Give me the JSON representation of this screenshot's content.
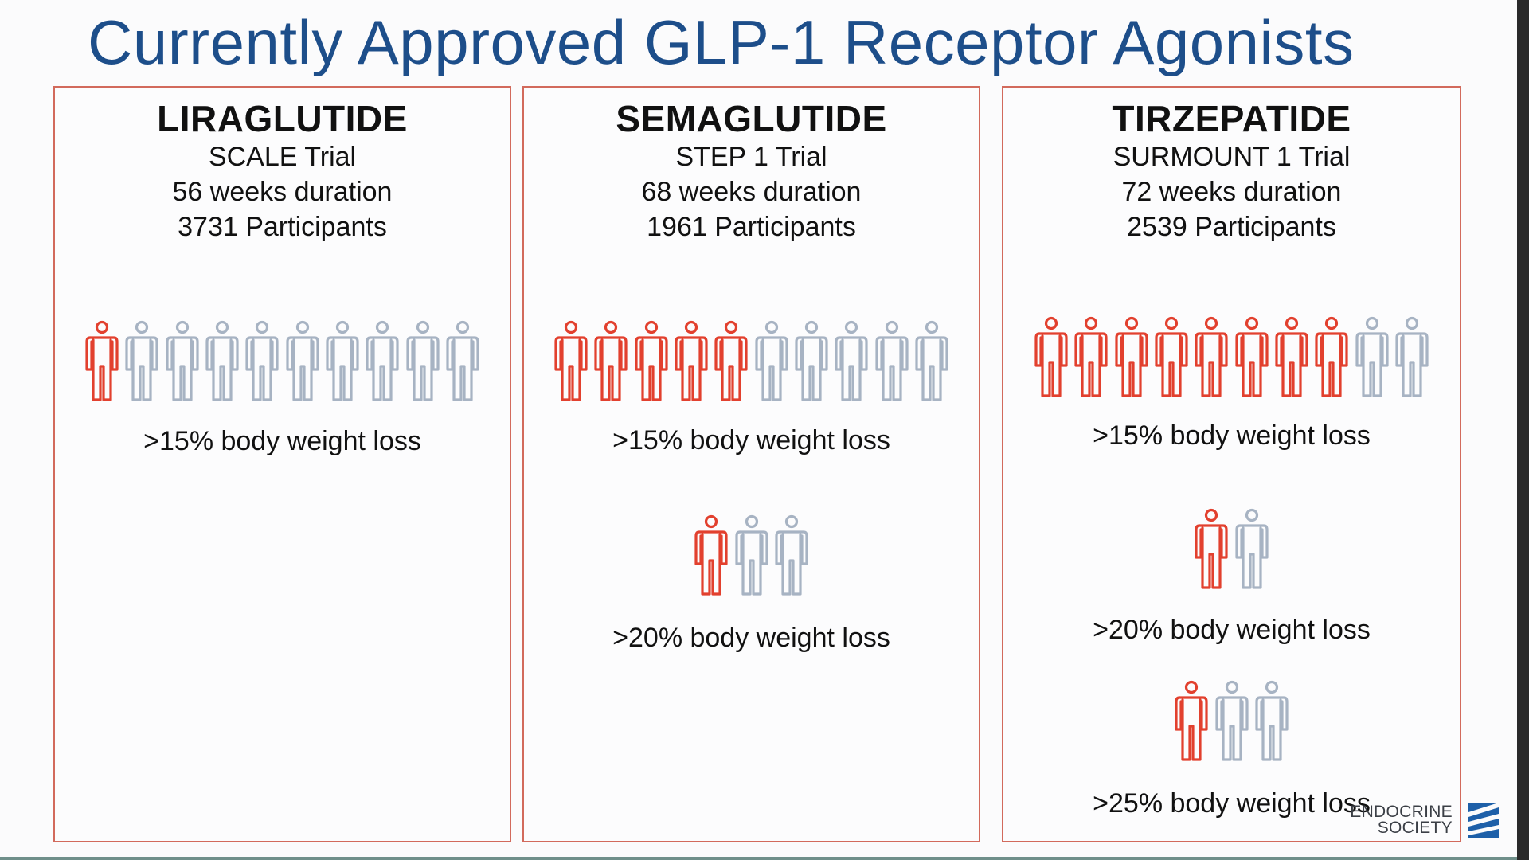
{
  "slide": {
    "title": "Currently Approved GLP-1 Receptor Agonists"
  },
  "colors": {
    "title": "#1d4e8a",
    "highlight": "#e2402e",
    "base": "#a7b3c3",
    "border": "#d26a5c"
  },
  "icons": {
    "person": "person-icon",
    "logo": "endocrine-society-logo-icon"
  },
  "panels": [
    {
      "drug": "LIRAGLUTIDE",
      "trial": "SCALE Trial",
      "duration": "56 weeks duration",
      "participants": "3731 Participants",
      "metrics": [
        {
          "label": ">15% body weight loss",
          "highlighted": 1,
          "total": 10
        }
      ]
    },
    {
      "drug": "SEMAGLUTIDE",
      "trial": "STEP 1 Trial",
      "duration": "68 weeks duration",
      "participants": "1961 Participants",
      "metrics": [
        {
          "label": ">15% body weight loss",
          "highlighted": 5,
          "total": 10
        },
        {
          "label": ">20% body weight loss",
          "highlighted": 1,
          "total": 3
        }
      ]
    },
    {
      "drug": "TIRZEPATIDE",
      "trial": "SURMOUNT 1 Trial",
      "duration": "72 weeks duration",
      "participants": "2539 Participants",
      "metrics": [
        {
          "label": ">15% body weight loss",
          "highlighted": 8,
          "total": 10
        },
        {
          "label": ">20% body weight loss",
          "highlighted": 1,
          "total": 2
        },
        {
          "label": ">25% body weight loss",
          "highlighted": 1,
          "total": 3
        }
      ]
    }
  ],
  "logo": {
    "line1": "ENDOCRINE",
    "line2": "SOCIETY"
  }
}
